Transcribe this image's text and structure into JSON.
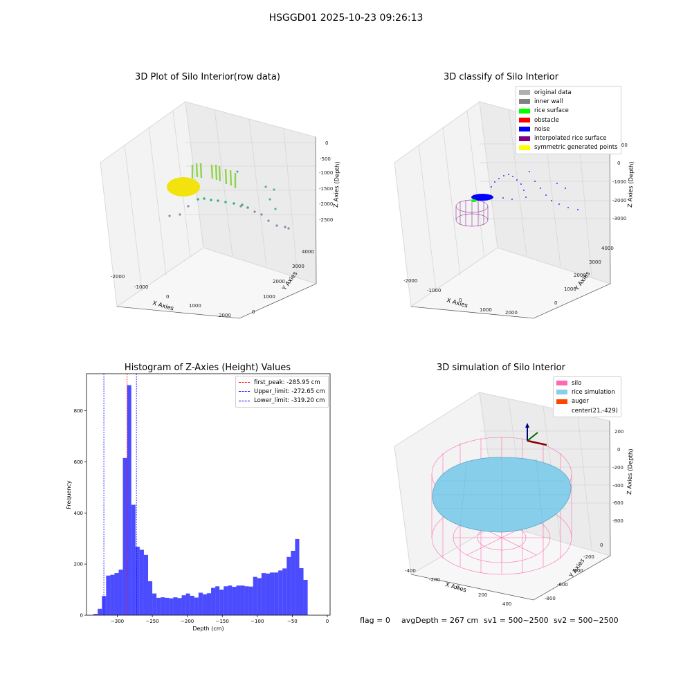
{
  "figure": {
    "suptitle": "HSGGD01 2025-10-23 09:26:13"
  },
  "status_line": {
    "flag": "flag = 0",
    "avg_depth": "avgDepth = 267 cm",
    "sv1": "sv1 = 500~2500",
    "sv2": "sv2 = 500~2500"
  },
  "chart_data": [
    {
      "type": "scatter",
      "title": "3D Plot of Silo Interior(row data)",
      "xlabel": "X Axies",
      "ylabel": "Y Axies",
      "zlabel": "Z Axies (Depth)",
      "x_ticks": [
        "-2000",
        "-1000",
        "0",
        "1000",
        "2000"
      ],
      "y_ticks": [
        "0",
        "1000",
        "2000",
        "3000",
        "4000"
      ],
      "z_ticks": [
        "0",
        "-500",
        "-1000",
        "-1500",
        "-2000",
        "-2500"
      ],
      "colormap": "viridis",
      "grid": true
    },
    {
      "type": "scatter",
      "title": "3D classify of Silo Interior",
      "xlabel": "X Axies",
      "ylabel": "Y Axies",
      "zlabel": "Z Axies (Depth)",
      "x_ticks": [
        "-2000",
        "-1000",
        "0",
        "1000",
        "2000"
      ],
      "y_ticks": [
        "0",
        "1000",
        "2000",
        "3000",
        "4000"
      ],
      "z_ticks": [
        "1000",
        "0",
        "-1000",
        "-2000",
        "-3000"
      ],
      "legend_position": "top-right",
      "legend": [
        {
          "label": "original data",
          "color": "#b0b0b0"
        },
        {
          "label": "inner wall",
          "color": "#808080"
        },
        {
          "label": "rice surface",
          "color": "#00ff00"
        },
        {
          "label": "obstacle",
          "color": "#ff0000"
        },
        {
          "label": "noise",
          "color": "#0000ff"
        },
        {
          "label": "interpolated rice surface",
          "color": "#800080"
        },
        {
          "label": "symmetric generated points",
          "color": "#ffff00"
        }
      ],
      "grid": true
    },
    {
      "type": "bar",
      "title": "Histogram of Z-Axies (Height) Values",
      "xlabel": "Depth (cm)",
      "ylabel": "Frequency",
      "bin_width": 6,
      "bin_start": -334,
      "values": [
        5,
        25,
        75,
        155,
        158,
        165,
        178,
        615,
        900,
        432,
        268,
        256,
        236,
        133,
        85,
        68,
        70,
        68,
        66,
        70,
        67,
        78,
        85,
        76,
        69,
        88,
        82,
        86,
        107,
        113,
        100,
        113,
        116,
        111,
        116,
        116,
        113,
        112,
        150,
        145,
        165,
        163,
        167,
        167,
        175,
        183,
        228,
        252,
        298,
        184,
        138
      ],
      "xlim": [
        -344,
        4
      ],
      "ylim": [
        0,
        945
      ],
      "x_ticks": [
        -300,
        -250,
        -200,
        -150,
        -100,
        -50,
        0
      ],
      "x_tick_labels": [
        "−300",
        "−250",
        "−200",
        "−150",
        "−100",
        "−50",
        "0"
      ],
      "y_ticks": [
        0,
        200,
        400,
        600,
        800
      ],
      "y_tick_labels": [
        "0",
        "200",
        "400",
        "600",
        "800"
      ],
      "bar_color": "#0000ff",
      "vlines": [
        {
          "label": "first_peak: -285.95 cm",
          "x": -285.95,
          "color": "#ff0000"
        },
        {
          "label": "Upper_limit: -272.65 cm",
          "x": -272.65,
          "color": "#0000ff"
        },
        {
          "label": "Lower_limit: -319.20 cm",
          "x": -319.2,
          "color": "#0000ff"
        }
      ],
      "legend_position": "top-right"
    },
    {
      "type": "scatter",
      "title": "3D simulation of Silo Interior",
      "xlabel": "X Axies",
      "ylabel": "Y Axies",
      "zlabel": "Z Axies (Depth)",
      "x_ticks": [
        "-400",
        "-200",
        "0",
        "200",
        "400"
      ],
      "y_ticks": [
        "0",
        "-200",
        "-400",
        "-600",
        "-800"
      ],
      "z_ticks": [
        "200",
        "0",
        "-200",
        "-400",
        "-600",
        "-800"
      ],
      "legend_position": "top-right",
      "legend": [
        {
          "label": "silo",
          "color": "#ff69b4"
        },
        {
          "label": "rice simulation",
          "color": "#87ceeb"
        },
        {
          "label": "auger",
          "color": "#ff4500"
        },
        {
          "label": "center(21,-429)",
          "color": ""
        }
      ],
      "grid": true
    }
  ]
}
